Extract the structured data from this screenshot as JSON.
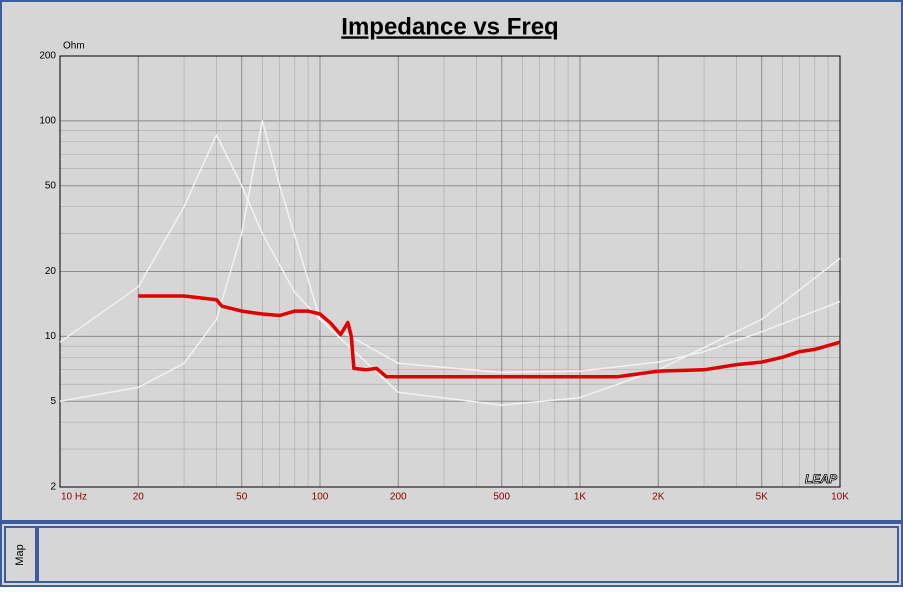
{
  "chart_data": {
    "type": "line",
    "title": "Impedance vs Freq",
    "y_unit": "Ohm",
    "logo": "LEAP",
    "xlog": true,
    "ylog": true,
    "grid": true,
    "xlim": [
      10,
      10000
    ],
    "ylim": [
      2,
      200
    ],
    "xticks": [
      {
        "value": 10,
        "label": "10  Hz"
      },
      20,
      50,
      100,
      200,
      500,
      {
        "value": 1000,
        "label": "1K"
      },
      {
        "value": 2000,
        "label": "2K"
      },
      {
        "value": 5000,
        "label": "5K"
      },
      {
        "value": 10000,
        "label": "10K"
      }
    ],
    "yticks": [
      2,
      5,
      10,
      20,
      50,
      100,
      200
    ],
    "series": [
      {
        "color": "#f2f2f2",
        "x": [
          10,
          20,
          30,
          40,
          50,
          60,
          80,
          100,
          200,
          500,
          1000,
          2000,
          3000,
          5000,
          10000
        ],
        "values": [
          9.4,
          17,
          40,
          86,
          50,
          30,
          16,
          12,
          7.5,
          6.8,
          6.9,
          7.6,
          8.5,
          10.5,
          14.5
        ]
      },
      {
        "color": "#f2f2f2",
        "x": [
          10,
          20,
          30,
          40,
          50,
          60,
          70,
          100,
          200,
          500,
          1000,
          2000,
          5000,
          10000
        ],
        "values": [
          5,
          5.8,
          7.5,
          12,
          30,
          100,
          50,
          12,
          5.5,
          4.8,
          5.2,
          7,
          12,
          23
        ]
      },
      {
        "color": "#e00000",
        "x": [
          20,
          30,
          40,
          42,
          50,
          60,
          70,
          80,
          90,
          100,
          110,
          120,
          128,
          132,
          135,
          150,
          165,
          180,
          500,
          1400,
          2000,
          3000,
          4000,
          5000,
          6000,
          7000,
          8000,
          10000
        ],
        "values": [
          15.4,
          15.4,
          14.8,
          13.8,
          13.1,
          12.7,
          12.5,
          13.1,
          13.1,
          12.7,
          11.5,
          10.2,
          11.6,
          10,
          7.1,
          7.0,
          7.1,
          6.5,
          6.5,
          6.5,
          6.9,
          7.0,
          7.4,
          7.6,
          8.0,
          8.5,
          8.7,
          9.4
        ]
      }
    ]
  },
  "map_panel": {
    "label": "Map"
  }
}
